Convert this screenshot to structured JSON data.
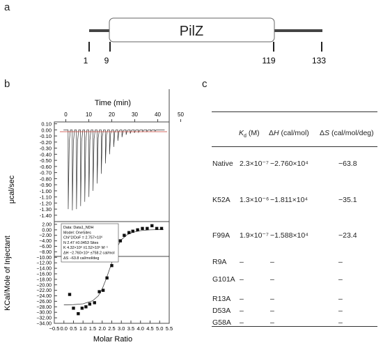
{
  "panels": {
    "a": "a",
    "b": "b",
    "c": "c"
  },
  "domain_map": {
    "name": "PilZ",
    "positions": [
      "1",
      "9",
      "119",
      "133"
    ]
  },
  "itc": {
    "top": {
      "xlabel": "Time (min)",
      "xticks": [
        "0",
        "10",
        "20",
        "30",
        "40",
        "50"
      ],
      "ylabel": "μcal/sec",
      "yticks": [
        "0.10",
        "0.00",
        "-0.10",
        "-0.20",
        "-0.30",
        "-0.40",
        "-0.50",
        "-0.60",
        "-0.70",
        "-0.80",
        "-0.90",
        "-1.00",
        "-1.10",
        "-1.20",
        "-1.30",
        "-1.40"
      ]
    },
    "bottom": {
      "xlabel": "Molar Ratio",
      "xticks": [
        "−0.5",
        "0.0",
        "0.5",
        "1.0",
        "1.5",
        "2.0",
        "2.5",
        "3.0",
        "3.5",
        "4.0",
        "4.5",
        "5.0",
        "5.5"
      ],
      "ylabel": "KCal/Mole of Injectant",
      "yticks": [
        "2.00",
        "0.00",
        "−2.00",
        "−4.00",
        "−6.00",
        "−8.00",
        "−10.00",
        "−12.00",
        "−14.00",
        "−16.00",
        "−18.00",
        "−20.00",
        "−22.00",
        "−24.00",
        "−26.00",
        "−28.00",
        "−30.00",
        "−32.00",
        "−34.00"
      ],
      "fit_box": [
        "Data: Data1_NDH",
        "Model: OneSites",
        "Chi^2/DoF = 2.757×10⁶",
        "N    2.47 ±0.0453 Sites",
        "K    4.32×10⁶ ±1.52×10⁶ M⁻¹",
        "ΔH   −2.760×10⁴ ±758.2 cal/mol",
        "ΔS   −63.8 cal/mol/deg"
      ]
    }
  },
  "chart_data": {
    "type": "scatter",
    "xlabel": "Molar Ratio",
    "ylabel": "KCal/Mole of Injectant",
    "xlim": [
      -0.5,
      5.5
    ],
    "ylim": [
      -34,
      3
    ],
    "series": [
      {
        "x": [
          0.3,
          0.5,
          0.75,
          0.95,
          1.15,
          1.35,
          1.6,
          1.85,
          2.05,
          2.25,
          2.5,
          2.7,
          2.95,
          3.15,
          3.4,
          3.6,
          3.85,
          4.1,
          4.35,
          4.6,
          4.85,
          5.1
        ],
        "y": [
          -23.5,
          -28.5,
          -30.5,
          -28.5,
          -28.0,
          -27.0,
          -26.5,
          -22.5,
          -22.0,
          -17.5,
          -13.0,
          -8.5,
          -4.0,
          -2.0,
          -1.0,
          -0.5,
          0.0,
          0.5,
          0.5,
          1.5,
          0.5,
          0.5
        ]
      }
    ],
    "fit": {
      "x": [
        0.0,
        0.5,
        1.0,
        1.5,
        1.8,
        2.0,
        2.2,
        2.4,
        2.5,
        2.6,
        2.8,
        3.0,
        3.3,
        3.6,
        4.0,
        4.5,
        5.0,
        5.2
      ],
      "y": [
        -27.3,
        -27.2,
        -26.9,
        -25.8,
        -24.0,
        -21.5,
        -18.0,
        -14.0,
        -12.0,
        -9.5,
        -6.0,
        -3.6,
        -1.8,
        -0.9,
        -0.3,
        0.0,
        0.1,
        0.1
      ]
    }
  },
  "table": {
    "headers": [
      "Kd (M)",
      "ΔH (cal/mol)",
      "ΔS (cal/mol/deg)"
    ],
    "rows": [
      {
        "name": "Native",
        "kd": "2.3×10⁻⁷",
        "dh": "−2.760×10⁴",
        "ds": "−63.8"
      },
      {
        "name": "K52A",
        "kd": "1.3×10⁻⁶",
        "dh": "−1.811×10⁴",
        "ds": "−35.1"
      },
      {
        "name": "F99A",
        "kd": "1.9×10⁻⁷",
        "dh": "−1.588×10⁴",
        "ds": "−23.4"
      },
      {
        "name": "R9A",
        "kd": "–",
        "dh": "–",
        "ds": "–"
      },
      {
        "name": "G101A",
        "kd": "–",
        "dh": "–",
        "ds": "–"
      },
      {
        "name": "R13A",
        "kd": "–",
        "dh": "–",
        "ds": "–"
      },
      {
        "name": "D53A",
        "kd": "–",
        "dh": "–",
        "ds": "–"
      },
      {
        "name": "G58A",
        "kd": "–",
        "dh": "–",
        "ds": "–"
      }
    ]
  }
}
